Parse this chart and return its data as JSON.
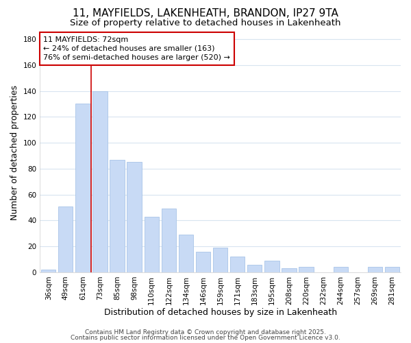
{
  "title": "11, MAYFIELDS, LAKENHEATH, BRANDON, IP27 9TA",
  "subtitle": "Size of property relative to detached houses in Lakenheath",
  "xlabel": "Distribution of detached houses by size in Lakenheath",
  "ylabel": "Number of detached properties",
  "bar_labels": [
    "36sqm",
    "49sqm",
    "61sqm",
    "73sqm",
    "85sqm",
    "98sqm",
    "110sqm",
    "122sqm",
    "134sqm",
    "146sqm",
    "159sqm",
    "171sqm",
    "183sqm",
    "195sqm",
    "208sqm",
    "220sqm",
    "232sqm",
    "244sqm",
    "257sqm",
    "269sqm",
    "281sqm"
  ],
  "bar_values": [
    2,
    51,
    130,
    140,
    87,
    85,
    43,
    49,
    29,
    16,
    19,
    12,
    6,
    9,
    3,
    4,
    0,
    4,
    0,
    4,
    4
  ],
  "bar_color": "#c8daf5",
  "bar_edge_color": "#a8c4e8",
  "grid_color": "#d8e4f0",
  "vline_x": 2.5,
  "vline_color": "#cc0000",
  "annotation_line1": "11 MAYFIELDS: 72sqm",
  "annotation_line2": "← 24% of detached houses are smaller (163)",
  "annotation_line3": "76% of semi-detached houses are larger (520) →",
  "annotation_box_color": "#ffffff",
  "annotation_box_edge": "#cc0000",
  "ylim": [
    0,
    185
  ],
  "yticks": [
    0,
    20,
    40,
    60,
    80,
    100,
    120,
    140,
    160,
    180
  ],
  "footer1": "Contains HM Land Registry data © Crown copyright and database right 2025.",
  "footer2": "Contains public sector information licensed under the Open Government Licence v3.0.",
  "title_fontsize": 11,
  "subtitle_fontsize": 9.5,
  "axis_label_fontsize": 9,
  "tick_fontsize": 7.5,
  "annotation_fontsize": 8,
  "footer_fontsize": 6.5
}
